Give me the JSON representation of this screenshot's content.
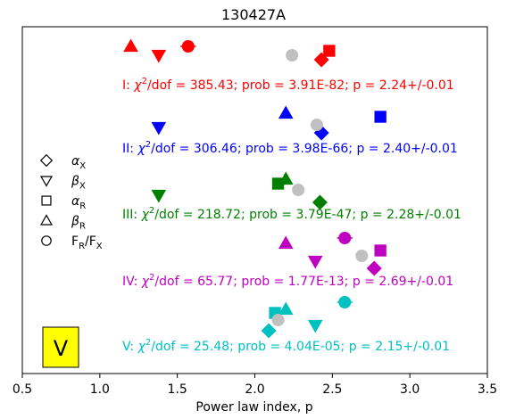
{
  "chart_data": {
    "type": "scatter",
    "title": "130427A",
    "xlabel": "Power law index, p",
    "ylabel": "",
    "xlim": [
      0.5,
      3.5
    ],
    "xticks": [
      "0.5",
      "1.0",
      "1.5",
      "2.0",
      "2.5",
      "3.0",
      "3.5"
    ],
    "grid": false,
    "legend": {
      "placement": "left",
      "entries": [
        {
          "marker": "diamond",
          "label": "α",
          "sub": "X"
        },
        {
          "marker": "triangle-down",
          "label": "β",
          "sub": "X"
        },
        {
          "marker": "square",
          "label": "α",
          "sub": "R"
        },
        {
          "marker": "triangle-up",
          "label": "β",
          "sub": "R"
        },
        {
          "marker": "circle",
          "label": "F",
          "sub": "R",
          "label2": "/F",
          "sub2": "X"
        }
      ]
    },
    "panel_label": "V",
    "panel_label_bg": "#ffff00",
    "groups": [
      {
        "color": "#ff0000",
        "roman": "I",
        "chi2": "385.43",
        "prob": "3.91E-82",
        "p": "2.24+/-0.01",
        "points": [
          {
            "marker": "triangle-up",
            "x": 1.2,
            "row": 0
          },
          {
            "marker": "circle",
            "x": 1.57,
            "row": 0,
            "xerr": 0.05
          },
          {
            "marker": "triangle-down",
            "x": 1.38,
            "row": 1
          },
          {
            "marker": "square",
            "x": 2.48,
            "row": 0.5
          },
          {
            "marker": "diamond",
            "x": 2.43,
            "row": 1.5
          },
          {
            "marker": "circle",
            "x": 2.24,
            "row": 1,
            "avg": true
          }
        ]
      },
      {
        "color": "#0000ff",
        "roman": "II",
        "chi2": "306.46",
        "prob": "3.98E-66",
        "p": "2.40+/-0.01",
        "points": [
          {
            "marker": "triangle-up",
            "x": 2.2,
            "row": 0
          },
          {
            "marker": "square",
            "x": 2.81,
            "row": 0.4
          },
          {
            "marker": "triangle-down",
            "x": 1.38,
            "row": 1.6
          },
          {
            "marker": "diamond",
            "x": 2.43,
            "row": 2.2
          },
          {
            "marker": "circle",
            "x": 2.4,
            "row": 1.3,
            "avg": true
          }
        ]
      },
      {
        "color": "#008000",
        "roman": "III",
        "chi2": "218.72",
        "prob": "3.79E-47",
        "p": "2.28+/-0.01",
        "points": [
          {
            "marker": "triangle-up",
            "x": 2.2,
            "row": 0
          },
          {
            "marker": "square",
            "x": 2.15,
            "row": 0.5
          },
          {
            "marker": "triangle-down",
            "x": 1.38,
            "row": 1.8
          },
          {
            "marker": "diamond",
            "x": 2.42,
            "row": 2.6
          },
          {
            "marker": "circle",
            "x": 2.28,
            "row": 1.2,
            "avg": true
          }
        ]
      },
      {
        "color": "#c000c0",
        "roman": "IV",
        "chi2": "65.77",
        "prob": "1.77E-13",
        "p": "2.69+/-0.01",
        "points": [
          {
            "marker": "circle",
            "x": 2.58,
            "row": 0,
            "xerr": 0.05
          },
          {
            "marker": "triangle-up",
            "x": 2.2,
            "row": 0.6
          },
          {
            "marker": "square",
            "x": 2.81,
            "row": 1.4
          },
          {
            "marker": "triangle-down",
            "x": 2.39,
            "row": 2.6
          },
          {
            "marker": "diamond",
            "x": 2.77,
            "row": 3.4
          },
          {
            "marker": "circle",
            "x": 2.69,
            "row": 2.0,
            "avg": true
          }
        ]
      },
      {
        "color": "#00c0c0",
        "roman": "V",
        "chi2": "25.48",
        "prob": "4.04E-05",
        "p": "2.15+/-0.01",
        "points": [
          {
            "marker": "circle",
            "x": 2.58,
            "row": 0,
            "xerr": 0.05
          },
          {
            "marker": "triangle-up",
            "x": 2.2,
            "row": 0.8
          },
          {
            "marker": "square",
            "x": 2.13,
            "row": 1.2
          },
          {
            "marker": "triangle-down",
            "x": 2.39,
            "row": 2.6
          },
          {
            "marker": "diamond",
            "x": 2.09,
            "row": 3.2
          },
          {
            "marker": "circle",
            "x": 2.15,
            "row": 2.0,
            "avg": true
          }
        ]
      }
    ]
  }
}
